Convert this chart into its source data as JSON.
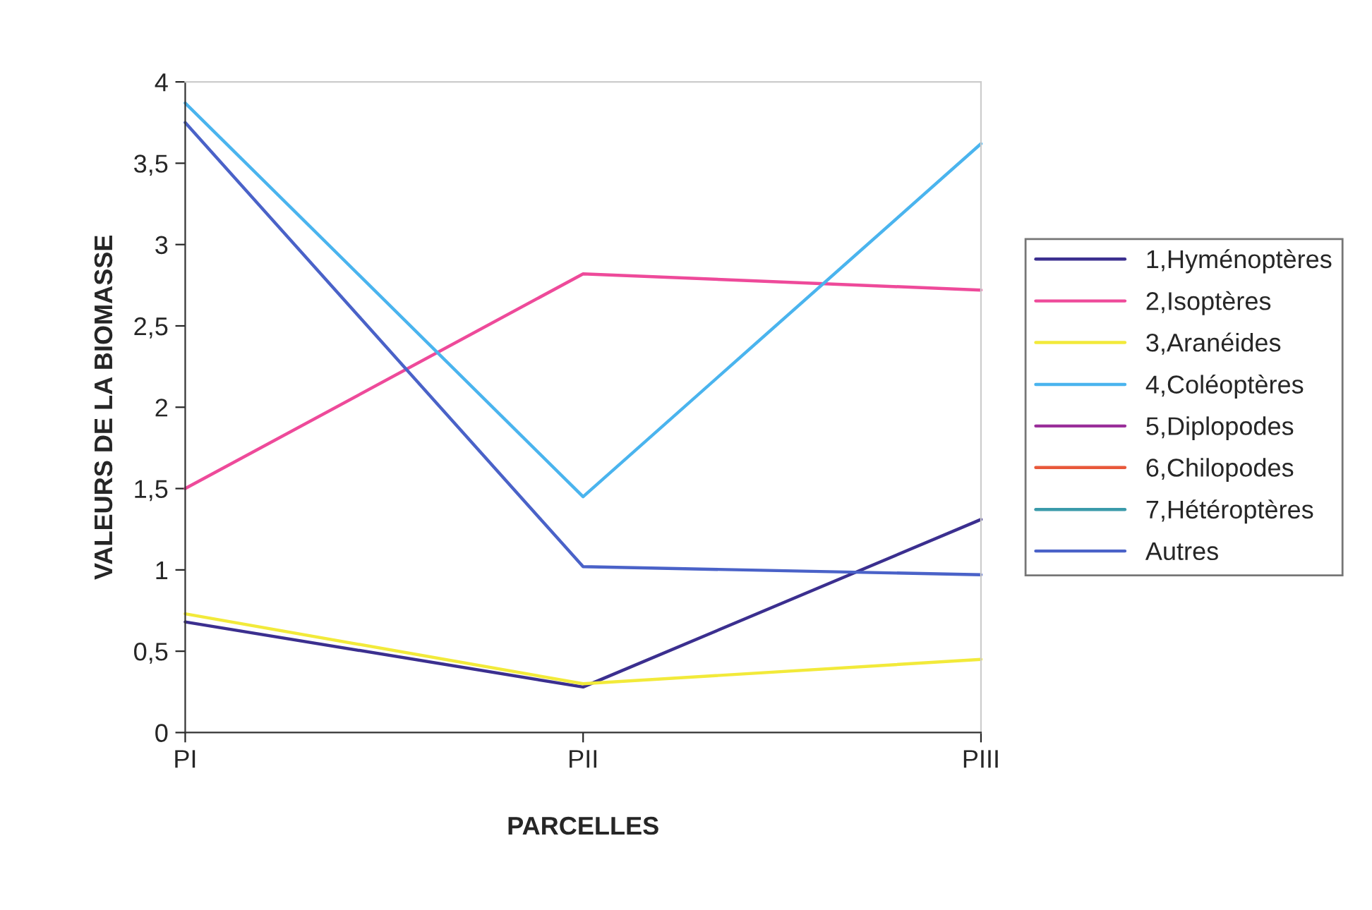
{
  "chart_data": {
    "type": "line",
    "xlabel": "PARCELLES",
    "ylabel": "VALEURS DE LA BIOMASSE",
    "categories": [
      "PI",
      "PII",
      "PIII"
    ],
    "ylim": [
      0,
      4
    ],
    "yticks": [
      {
        "value": 0,
        "label": "0"
      },
      {
        "value": 0.5,
        "label": "0,5"
      },
      {
        "value": 1,
        "label": "1"
      },
      {
        "value": 1.5,
        "label": "1,5"
      },
      {
        "value": 2,
        "label": "2"
      },
      {
        "value": 2.5,
        "label": "2,5"
      },
      {
        "value": 3,
        "label": "3"
      },
      {
        "value": 3.5,
        "label": "3,5"
      },
      {
        "value": 4,
        "label": "4"
      }
    ],
    "grid": false,
    "legend": "right",
    "marker": "none",
    "line_style": "solid",
    "series": [
      {
        "name": "1,Hyménoptères",
        "color": "#3b2f8f",
        "values": [
          0.68,
          0.28,
          1.31
        ]
      },
      {
        "name": "2,Isoptères",
        "color": "#ee4a9a",
        "values": [
          1.5,
          2.82,
          2.72
        ]
      },
      {
        "name": "3,Aranéides",
        "color": "#f2ea3a",
        "values": [
          0.73,
          0.3,
          0.45
        ]
      },
      {
        "name": "4,Coléoptères",
        "color": "#4ab4ee",
        "values": [
          3.87,
          1.45,
          3.62
        ]
      },
      {
        "name": "5,Diplopodes",
        "color": "#9a2f9a",
        "values": [
          null,
          null,
          null
        ]
      },
      {
        "name": "6,Chilopodes",
        "color": "#e8583a",
        "values": [
          null,
          null,
          null
        ]
      },
      {
        "name": "7,Hétéroptères",
        "color": "#3a9aaa",
        "values": [
          null,
          null,
          null
        ]
      },
      {
        "name": "Autres",
        "color": "#4a62c8",
        "values": [
          3.75,
          1.02,
          0.97
        ]
      }
    ]
  }
}
